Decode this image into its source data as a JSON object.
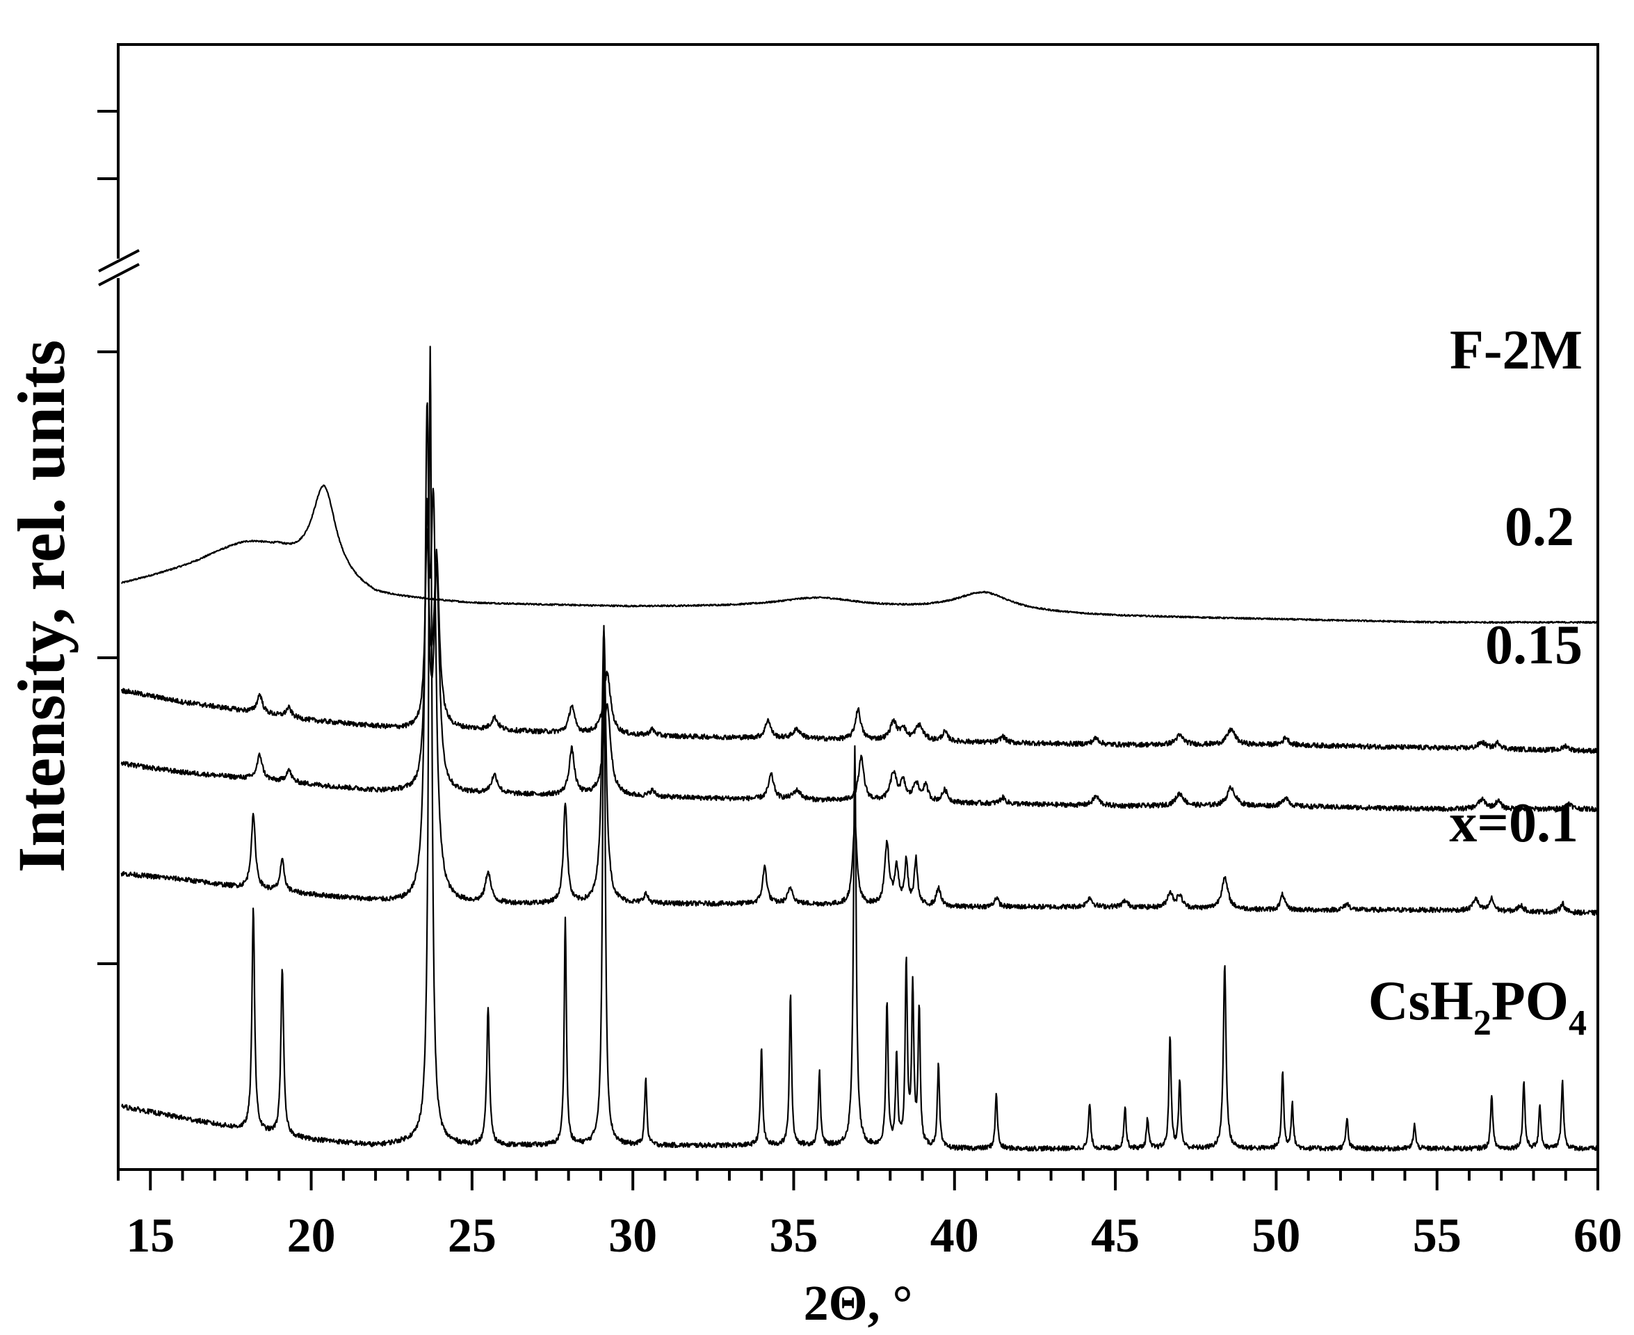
{
  "chart_data": {
    "type": "line",
    "title": "",
    "xlabel": "2Θ, °",
    "ylabel": "Intensity, rel. units",
    "xlim": [
      14,
      60
    ],
    "x_major_ticks": [
      15,
      20,
      25,
      30,
      35,
      40,
      45,
      50,
      55,
      60
    ],
    "y_axis_break": true,
    "grid": false,
    "legend": "none",
    "line_color": "#000000",
    "series": [
      {
        "name": "F-2M",
        "baseline": [
          [
            14,
            0.94
          ],
          [
            17,
            1.01
          ],
          [
            19,
            1.02
          ],
          [
            22,
            0.9
          ],
          [
            25,
            0.88
          ],
          [
            30,
            0.87
          ],
          [
            35,
            0.87
          ],
          [
            40,
            0.86
          ],
          [
            45,
            0.84
          ],
          [
            50,
            0.83
          ],
          [
            55,
            0.82
          ],
          [
            60,
            0.82
          ]
        ],
        "peaks": [
          [
            20.4,
            0.29,
            0.45
          ],
          [
            18.0,
            0.06,
            1.2
          ],
          [
            35.8,
            0.03,
            1.5
          ],
          [
            40.9,
            0.06,
            1.0
          ]
        ]
      },
      {
        "name": "0.2",
        "baseline": [
          [
            14,
            0.6
          ],
          [
            16,
            0.56
          ],
          [
            18,
            0.53
          ],
          [
            20,
            0.5
          ],
          [
            22,
            0.48
          ],
          [
            23,
            0.47
          ],
          [
            25,
            0.47
          ],
          [
            30,
            0.45
          ],
          [
            35,
            0.44
          ],
          [
            40,
            0.43
          ],
          [
            45,
            0.42
          ],
          [
            50,
            0.42
          ],
          [
            55,
            0.41
          ],
          [
            60,
            0.4
          ]
        ],
        "peaks": [
          [
            18.4,
            0.06,
            0.1
          ],
          [
            19.3,
            0.03,
            0.1
          ],
          [
            23.6,
            0.6,
            0.07
          ],
          [
            23.9,
            0.55,
            0.1
          ],
          [
            25.7,
            0.04,
            0.12
          ],
          [
            28.1,
            0.09,
            0.1
          ],
          [
            29.2,
            0.2,
            0.13
          ],
          [
            30.6,
            0.02,
            0.1
          ],
          [
            34.2,
            0.06,
            0.1
          ],
          [
            35.1,
            0.03,
            0.15
          ],
          [
            37.0,
            0.1,
            0.1
          ],
          [
            38.1,
            0.06,
            0.12
          ],
          [
            38.4,
            0.04,
            0.1
          ],
          [
            38.9,
            0.05,
            0.15
          ],
          [
            39.7,
            0.03,
            0.1
          ],
          [
            41.5,
            0.02,
            0.1
          ],
          [
            44.4,
            0.02,
            0.12
          ],
          [
            47.0,
            0.03,
            0.15
          ],
          [
            48.6,
            0.05,
            0.15
          ],
          [
            50.3,
            0.025,
            0.1
          ],
          [
            56.4,
            0.02,
            0.15
          ],
          [
            56.9,
            0.02,
            0.1
          ],
          [
            59.0,
            0.015,
            0.1
          ]
        ]
      },
      {
        "name": "0.15",
        "baseline": [
          [
            14,
            0.36
          ],
          [
            16,
            0.33
          ],
          [
            18,
            0.31
          ],
          [
            20,
            0.29
          ],
          [
            22,
            0.27
          ],
          [
            25,
            0.26
          ],
          [
            30,
            0.25
          ],
          [
            35,
            0.24
          ],
          [
            40,
            0.23
          ],
          [
            45,
            0.22
          ],
          [
            50,
            0.22
          ],
          [
            55,
            0.21
          ],
          [
            60,
            0.21
          ]
        ],
        "peaks": [
          [
            18.4,
            0.08,
            0.1
          ],
          [
            19.3,
            0.04,
            0.1
          ],
          [
            23.6,
            0.9,
            0.07
          ],
          [
            23.9,
            0.7,
            0.1
          ],
          [
            25.7,
            0.06,
            0.12
          ],
          [
            28.1,
            0.15,
            0.1
          ],
          [
            29.2,
            0.3,
            0.13
          ],
          [
            30.6,
            0.02,
            0.1
          ],
          [
            34.3,
            0.08,
            0.1
          ],
          [
            35.1,
            0.03,
            0.15
          ],
          [
            37.1,
            0.14,
            0.1
          ],
          [
            38.1,
            0.09,
            0.12
          ],
          [
            38.4,
            0.06,
            0.1
          ],
          [
            38.8,
            0.06,
            0.1
          ],
          [
            39.1,
            0.05,
            0.1
          ],
          [
            39.7,
            0.04,
            0.1
          ],
          [
            41.5,
            0.02,
            0.1
          ],
          [
            44.4,
            0.03,
            0.12
          ],
          [
            47.0,
            0.04,
            0.15
          ],
          [
            48.6,
            0.06,
            0.15
          ],
          [
            50.3,
            0.03,
            0.1
          ],
          [
            56.4,
            0.03,
            0.15
          ],
          [
            56.9,
            0.025,
            0.1
          ],
          [
            59.1,
            0.02,
            0.1
          ]
        ]
      },
      {
        "name": "x=0.1",
        "baseline": [
          [
            14,
            0.0
          ],
          [
            16,
            -0.02
          ],
          [
            18,
            -0.05
          ],
          [
            20,
            -0.07
          ],
          [
            22,
            -0.09
          ],
          [
            23,
            -0.1
          ],
          [
            25,
            -0.1
          ],
          [
            30,
            -0.1
          ],
          [
            35,
            -0.1
          ],
          [
            40,
            -0.11
          ],
          [
            45,
            -0.11
          ],
          [
            50,
            -0.12
          ],
          [
            55,
            -0.12
          ],
          [
            60,
            -0.13
          ]
        ],
        "peaks": [
          [
            18.2,
            0.24,
            0.08
          ],
          [
            19.1,
            0.1,
            0.08
          ],
          [
            23.6,
            1.4,
            0.07
          ],
          [
            23.8,
            1.2,
            0.1
          ],
          [
            25.5,
            0.1,
            0.1
          ],
          [
            27.9,
            0.33,
            0.07
          ],
          [
            29.1,
            0.9,
            0.08
          ],
          [
            30.4,
            0.03,
            0.08
          ],
          [
            34.1,
            0.12,
            0.08
          ],
          [
            34.9,
            0.05,
            0.1
          ],
          [
            36.9,
            0.27,
            0.08
          ],
          [
            37.9,
            0.2,
            0.08
          ],
          [
            38.2,
            0.12,
            0.08
          ],
          [
            38.5,
            0.14,
            0.06
          ],
          [
            38.8,
            0.15,
            0.06
          ],
          [
            39.5,
            0.06,
            0.08
          ],
          [
            41.3,
            0.03,
            0.08
          ],
          [
            44.2,
            0.03,
            0.1
          ],
          [
            45.3,
            0.02,
            0.1
          ],
          [
            46.7,
            0.05,
            0.1
          ],
          [
            47.0,
            0.04,
            0.1
          ],
          [
            48.4,
            0.1,
            0.12
          ],
          [
            50.2,
            0.05,
            0.08
          ],
          [
            52.2,
            0.02,
            0.1
          ],
          [
            56.2,
            0.04,
            0.1
          ],
          [
            56.7,
            0.04,
            0.08
          ],
          [
            57.6,
            0.02,
            0.1
          ],
          [
            58.9,
            0.03,
            0.08
          ]
        ]
      },
      {
        "name": "CsH2PO4",
        "baseline": [
          [
            14,
            -0.76
          ],
          [
            16,
            -0.8
          ],
          [
            18,
            -0.84
          ],
          [
            20,
            -0.87
          ],
          [
            22,
            -0.89
          ],
          [
            23,
            -0.88
          ],
          [
            25,
            -0.89
          ],
          [
            30,
            -0.89
          ],
          [
            35,
            -0.89
          ],
          [
            40,
            -0.9
          ],
          [
            45,
            -0.9
          ],
          [
            50,
            -0.9
          ],
          [
            55,
            -0.9
          ],
          [
            60,
            -0.9
          ]
        ],
        "peaks": [
          [
            18.2,
            0.73,
            0.05
          ],
          [
            19.1,
            0.55,
            0.05
          ],
          [
            23.7,
            2.6,
            0.06
          ],
          [
            25.5,
            0.45,
            0.05
          ],
          [
            27.9,
            0.75,
            0.04
          ],
          [
            29.1,
            1.7,
            0.05
          ],
          [
            30.4,
            0.22,
            0.04
          ],
          [
            34.0,
            0.32,
            0.04
          ],
          [
            34.9,
            0.49,
            0.04
          ],
          [
            35.8,
            0.24,
            0.04
          ],
          [
            36.9,
            1.3,
            0.05
          ],
          [
            37.9,
            0.47,
            0.04
          ],
          [
            38.2,
            0.3,
            0.04
          ],
          [
            38.5,
            0.6,
            0.04
          ],
          [
            38.7,
            0.52,
            0.04
          ],
          [
            38.9,
            0.45,
            0.04
          ],
          [
            39.5,
            0.27,
            0.04
          ],
          [
            41.3,
            0.18,
            0.04
          ],
          [
            44.2,
            0.15,
            0.04
          ],
          [
            45.3,
            0.14,
            0.04
          ],
          [
            46.0,
            0.1,
            0.04
          ],
          [
            46.7,
            0.37,
            0.04
          ],
          [
            47.0,
            0.22,
            0.04
          ],
          [
            48.4,
            0.6,
            0.05
          ],
          [
            50.2,
            0.25,
            0.04
          ],
          [
            50.5,
            0.15,
            0.04
          ],
          [
            52.2,
            0.1,
            0.04
          ],
          [
            54.3,
            0.08,
            0.04
          ],
          [
            56.7,
            0.18,
            0.04
          ],
          [
            57.7,
            0.22,
            0.04
          ],
          [
            58.2,
            0.14,
            0.04
          ],
          [
            58.9,
            0.23,
            0.04
          ]
        ]
      }
    ],
    "series_labels": [
      "F-2M",
      "0.2",
      "0.15",
      "x=0.1",
      "CsH",
      "2",
      "PO",
      "4"
    ]
  }
}
